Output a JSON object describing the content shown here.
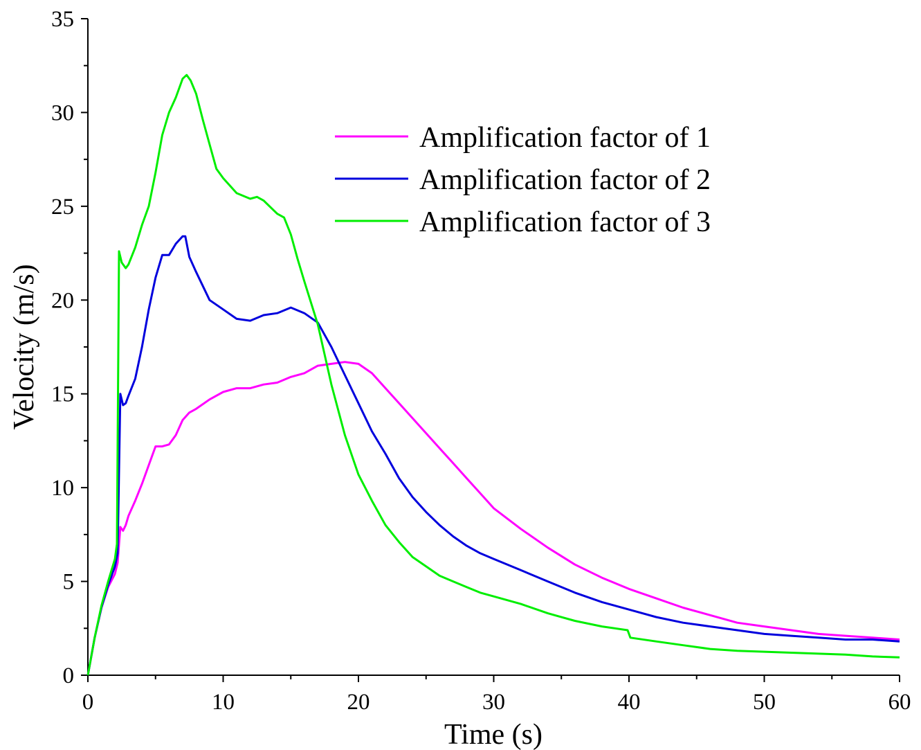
{
  "chart_data": {
    "type": "line",
    "title": "",
    "xlabel": "Time (s)",
    "ylabel": "Velocity (m/s)",
    "xlim": [
      0,
      60
    ],
    "ylim": [
      0,
      35
    ],
    "xticks": [
      0,
      10,
      20,
      30,
      40,
      50,
      60
    ],
    "yticks": [
      0,
      5,
      10,
      15,
      20,
      25,
      30,
      35
    ],
    "grid": false,
    "legend_position": "top-right",
    "series": [
      {
        "name": "Amplification factor of 1",
        "color": "#ff00ff",
        "x": [
          0,
          0.5,
          1,
          1.5,
          2,
          2.2,
          2.4,
          2.6,
          2.8,
          3,
          3.5,
          4,
          4.5,
          5,
          5.5,
          6,
          6.5,
          7,
          7.5,
          8,
          9,
          10,
          11,
          12,
          13,
          14,
          15,
          16,
          17,
          18,
          19,
          20,
          21,
          22,
          23,
          24,
          25,
          26,
          27,
          28,
          29,
          30,
          32,
          34,
          36,
          38,
          40,
          42,
          44,
          46,
          48,
          50,
          52,
          54,
          56,
          58,
          60
        ],
        "y": [
          0,
          2,
          3.6,
          4.7,
          5.4,
          6.0,
          7.9,
          7.7,
          8.0,
          8.5,
          9.3,
          10.2,
          11.2,
          12.2,
          12.2,
          12.3,
          12.8,
          13.6,
          14.0,
          14.2,
          14.7,
          15.1,
          15.3,
          15.3,
          15.5,
          15.6,
          15.9,
          16.1,
          16.5,
          16.6,
          16.7,
          16.6,
          16.1,
          15.3,
          14.5,
          13.7,
          12.9,
          12.1,
          11.3,
          10.5,
          9.7,
          8.9,
          7.8,
          6.8,
          5.9,
          5.2,
          4.6,
          4.1,
          3.6,
          3.2,
          2.8,
          2.6,
          2.4,
          2.2,
          2.1,
          2.0,
          1.9
        ]
      },
      {
        "name": "Amplification factor of 2",
        "color": "#0000dd",
        "x": [
          0,
          0.5,
          1,
          1.5,
          2,
          2.2,
          2.4,
          2.6,
          2.8,
          3,
          3.5,
          4,
          4.5,
          5,
          5.5,
          6,
          6.5,
          7,
          7.2,
          7.5,
          8,
          9,
          10,
          11,
          12,
          13,
          14,
          15,
          16,
          17,
          18,
          19,
          20,
          21,
          22,
          23,
          24,
          25,
          26,
          27,
          28,
          29,
          30,
          32,
          34,
          36,
          38,
          40,
          42,
          44,
          46,
          48,
          50,
          52,
          54,
          56,
          58,
          60
        ],
        "y": [
          0,
          2,
          3.6,
          4.8,
          5.8,
          6.5,
          15.0,
          14.4,
          14.5,
          14.9,
          15.8,
          17.5,
          19.5,
          21.2,
          22.4,
          22.4,
          23.0,
          23.4,
          23.4,
          22.3,
          21.5,
          20.0,
          19.5,
          19.0,
          18.9,
          19.2,
          19.3,
          19.6,
          19.3,
          18.8,
          17.5,
          16.0,
          14.5,
          13.0,
          11.8,
          10.5,
          9.5,
          8.7,
          8.0,
          7.4,
          6.9,
          6.5,
          6.2,
          5.6,
          5.0,
          4.4,
          3.9,
          3.5,
          3.1,
          2.8,
          2.6,
          2.4,
          2.2,
          2.1,
          2.0,
          1.9,
          1.9,
          1.8
        ]
      },
      {
        "name": "Amplification factor of 3",
        "color": "#00ee00",
        "x": [
          0,
          0.5,
          1,
          1.5,
          2,
          2.15,
          2.3,
          2.5,
          2.8,
          3,
          3.5,
          4,
          4.5,
          5,
          5.5,
          6,
          6.5,
          7,
          7.3,
          7.6,
          8,
          8.5,
          9,
          9.5,
          10,
          11,
          12,
          12.5,
          13,
          14,
          14.5,
          15,
          15.5,
          16,
          17,
          18,
          19,
          20,
          21,
          22,
          23,
          24,
          25,
          26,
          27,
          28,
          29,
          30,
          32,
          34,
          36,
          38,
          39.9,
          40.1,
          42,
          44,
          46,
          48,
          50,
          52,
          54,
          56,
          58,
          60
        ],
        "y": [
          0,
          2,
          3.7,
          5.0,
          6.2,
          7.0,
          22.6,
          22.0,
          21.7,
          21.9,
          22.8,
          24.0,
          25.0,
          26.8,
          28.8,
          30.0,
          30.8,
          31.8,
          32.0,
          31.7,
          31.0,
          29.6,
          28.3,
          27.0,
          26.5,
          25.7,
          25.4,
          25.5,
          25.3,
          24.6,
          24.4,
          23.5,
          22.2,
          21.0,
          18.7,
          15.5,
          12.8,
          10.7,
          9.3,
          8.0,
          7.1,
          6.3,
          5.8,
          5.3,
          5.0,
          4.7,
          4.4,
          4.2,
          3.8,
          3.3,
          2.9,
          2.6,
          2.4,
          2.0,
          1.8,
          1.6,
          1.4,
          1.3,
          1.25,
          1.2,
          1.15,
          1.1,
          1.0,
          0.95
        ]
      }
    ]
  }
}
